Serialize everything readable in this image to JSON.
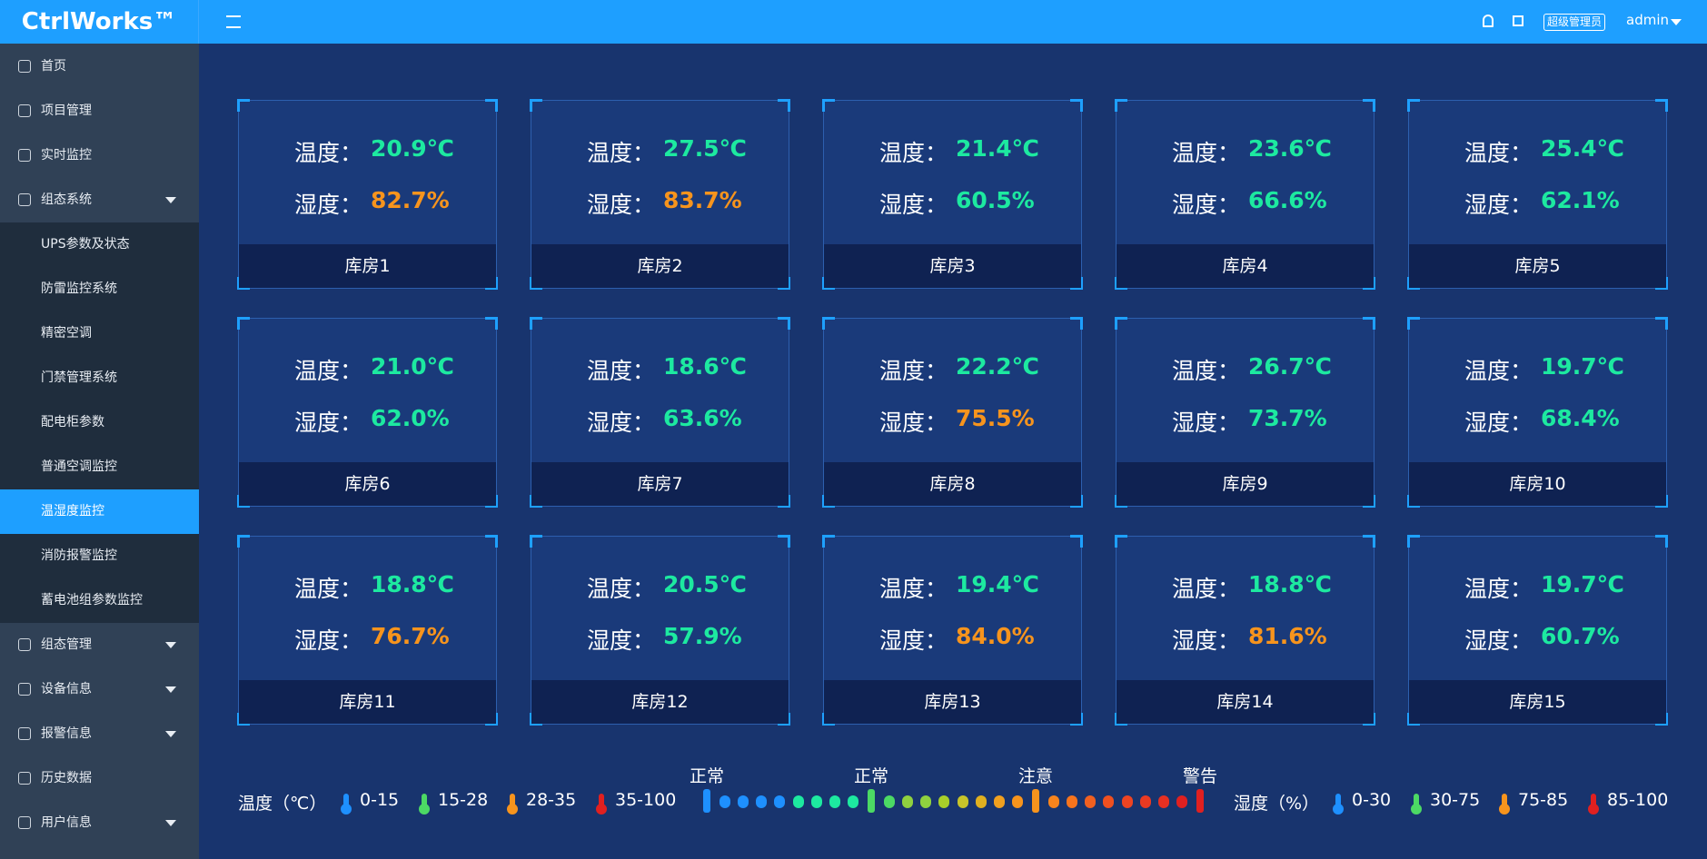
{
  "header": {
    "logo": "CtrlWorks™",
    "role": "超级管理员",
    "user": "admin"
  },
  "menu": [
    {
      "label": "首页",
      "icon": "home"
    },
    {
      "label": "项目管理",
      "icon": "folder"
    },
    {
      "label": "实时监控",
      "icon": "eye"
    },
    {
      "label": "组态系统",
      "icon": "cube",
      "open": true,
      "children": [
        {
          "label": "UPS参数及状态"
        },
        {
          "label": "防雷监控系统"
        },
        {
          "label": "精密空调"
        },
        {
          "label": "门禁管理系统"
        },
        {
          "label": "配电柜参数"
        },
        {
          "label": "普通空调监控"
        },
        {
          "label": "温湿度监控",
          "active": true
        },
        {
          "label": "消防报警监控"
        },
        {
          "label": "蓄电池组参数监控"
        }
      ]
    },
    {
      "label": "组态管理",
      "icon": "gauge",
      "arrow": true
    },
    {
      "label": "设备信息",
      "icon": "server",
      "arrow": true
    },
    {
      "label": "报警信息",
      "icon": "alarm",
      "arrow": true
    },
    {
      "label": "历史数据",
      "icon": "clock"
    },
    {
      "label": "用户信息",
      "icon": "user",
      "arrow": true
    }
  ],
  "labels": {
    "temp": "温度：",
    "hum": "湿度："
  },
  "cards": [
    {
      "name": "库房1",
      "temp": "20.9℃",
      "hum": "82.7%",
      "temp_color": "#1de9a0",
      "hum_color": "#f7941d"
    },
    {
      "name": "库房2",
      "temp": "27.5℃",
      "hum": "83.7%",
      "temp_color": "#1de9a0",
      "hum_color": "#f7941d"
    },
    {
      "name": "库房3",
      "temp": "21.4℃",
      "hum": "60.5%",
      "temp_color": "#1de9a0",
      "hum_color": "#1de9a0"
    },
    {
      "name": "库房4",
      "temp": "23.6℃",
      "hum": "66.6%",
      "temp_color": "#1de9a0",
      "hum_color": "#1de9a0"
    },
    {
      "name": "库房5",
      "temp": "25.4℃",
      "hum": "62.1%",
      "temp_color": "#1de9a0",
      "hum_color": "#1de9a0"
    },
    {
      "name": "库房6",
      "temp": "21.0℃",
      "hum": "62.0%",
      "temp_color": "#1de9a0",
      "hum_color": "#1de9a0"
    },
    {
      "name": "库房7",
      "temp": "18.6℃",
      "hum": "63.6%",
      "temp_color": "#1de9a0",
      "hum_color": "#1de9a0"
    },
    {
      "name": "库房8",
      "temp": "22.2℃",
      "hum": "75.5%",
      "temp_color": "#1de9a0",
      "hum_color": "#f7941d"
    },
    {
      "name": "库房9",
      "temp": "26.7℃",
      "hum": "73.7%",
      "temp_color": "#1de9a0",
      "hum_color": "#1de9a0"
    },
    {
      "name": "库房10",
      "temp": "19.7℃",
      "hum": "68.4%",
      "temp_color": "#1de9a0",
      "hum_color": "#1de9a0"
    },
    {
      "name": "库房11",
      "temp": "18.8℃",
      "hum": "76.7%",
      "temp_color": "#1de9a0",
      "hum_color": "#f7941d"
    },
    {
      "name": "库房12",
      "temp": "20.5℃",
      "hum": "57.9%",
      "temp_color": "#1de9a0",
      "hum_color": "#1de9a0"
    },
    {
      "name": "库房13",
      "temp": "19.4℃",
      "hum": "84.0%",
      "temp_color": "#1de9a0",
      "hum_color": "#f7941d"
    },
    {
      "name": "库房14",
      "temp": "18.8℃",
      "hum": "81.6%",
      "temp_color": "#1de9a0",
      "hum_color": "#f7941d"
    },
    {
      "name": "库房15",
      "temp": "19.7℃",
      "hum": "60.7%",
      "temp_color": "#1de9a0",
      "hum_color": "#1de9a0"
    }
  ],
  "legend": {
    "temp_title": "温度（℃）",
    "temp_items": [
      {
        "label": "0-15",
        "color": "#1e90ff"
      },
      {
        "label": "15-28",
        "color": "#4cd964"
      },
      {
        "label": "28-35",
        "color": "#f7941d"
      },
      {
        "label": "35-100",
        "color": "#e02020"
      }
    ],
    "hum_title": "湿度（%）",
    "hum_items": [
      {
        "label": "0-30",
        "color": "#1e90ff"
      },
      {
        "label": "30-75",
        "color": "#4cd964"
      },
      {
        "label": "75-85",
        "color": "#f7941d"
      },
      {
        "label": "85-100",
        "color": "#e02020"
      }
    ],
    "scale_labels": [
      "正常",
      "正常",
      "注意",
      "警告"
    ]
  }
}
